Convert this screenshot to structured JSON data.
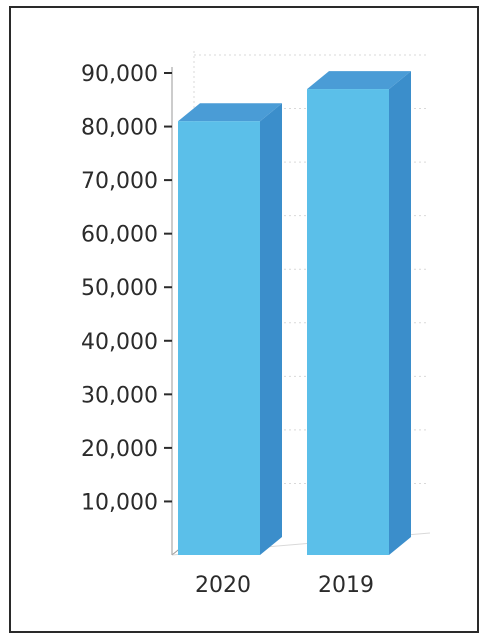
{
  "chart_data": {
    "type": "bar",
    "style": "3d",
    "categories": [
      "2020",
      "2019"
    ],
    "values": [
      81000,
      87000
    ],
    "ylim": [
      0,
      90000
    ],
    "yticks": [
      10000,
      20000,
      30000,
      40000,
      50000,
      60000,
      70000,
      80000,
      90000
    ],
    "ytick_labels": [
      "10,000",
      "20,000",
      "30,000",
      "40,000",
      "50,000",
      "60,000",
      "70,000",
      "80,000",
      "90,000"
    ],
    "title": "",
    "xlabel": "",
    "ylabel": "",
    "legend": "none",
    "grid": true,
    "colors": {
      "front": "#5bbfe9",
      "side": "#3b8ecb",
      "top": "#4a9cd6",
      "grid": "#d9d9d9",
      "axis": "#9a9a9a",
      "frame": "#2a2a2a"
    }
  }
}
